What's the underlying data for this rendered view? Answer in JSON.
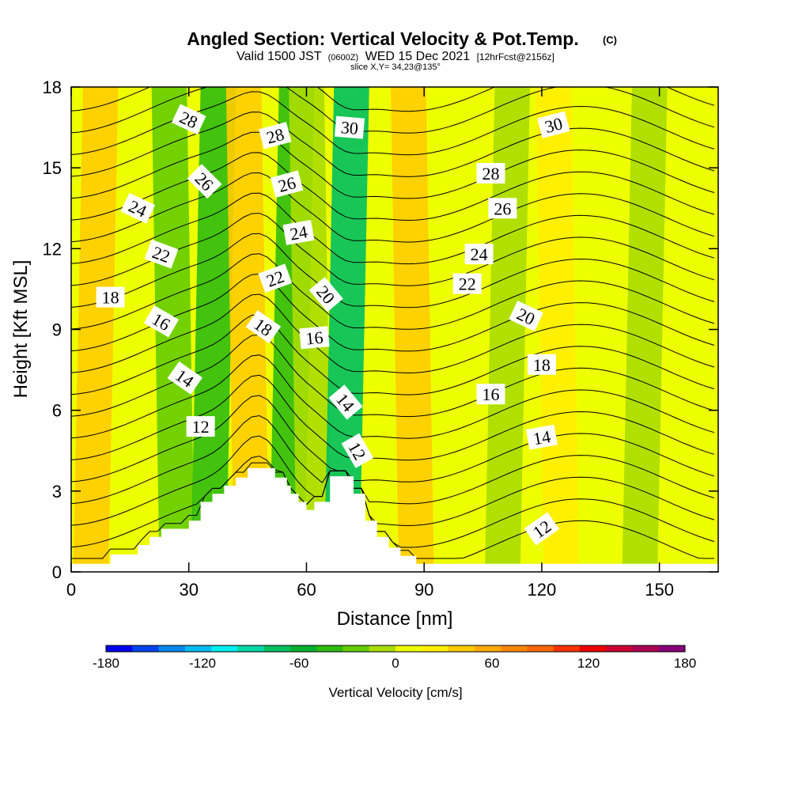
{
  "header": {
    "title": "Angled Section: Vertical Velocity & Pot.Temp.",
    "copyright": "(C)",
    "valid_prefix": "Valid 1500 JST",
    "valid_utc": "(0600Z)",
    "valid_date": "WED 15 Dec 2021",
    "forecast": "[12hrFcst@2156z]",
    "slice": "slice X,Y= 34,23@135°"
  },
  "colorbar": {
    "label": "Vertical Velocity [cm/s]",
    "tick_labels": [
      "-180",
      "-120",
      "-60",
      "0",
      "60",
      "120",
      "180"
    ],
    "colors": [
      "#0000ee",
      "#0044ee",
      "#0088ee",
      "#00bbee",
      "#00eeee",
      "#00d8a8",
      "#00c060",
      "#00b030",
      "#30bb10",
      "#66cc00",
      "#aadd00",
      "#eeff00",
      "#ffee00",
      "#ffcc00",
      "#ffaa00",
      "#ff8800",
      "#ff6600",
      "#ff3300",
      "#ee0000",
      "#cc0033",
      "#aa0055",
      "#880077"
    ]
  },
  "chart_data": {
    "type": "heatmap",
    "xlabel": "Distance [nm]",
    "ylabel": "Height [Kft MSL]",
    "xlim": [
      0,
      165
    ],
    "ylim": [
      0,
      18
    ],
    "xticks": [
      0,
      30,
      60,
      90,
      120,
      150
    ],
    "yticks": [
      0,
      3,
      6,
      9,
      12,
      15,
      18
    ],
    "field": "vertical velocity (cm/s), filled contours",
    "contour_field": "potential temperature (°C), contour interval 1",
    "theta_range": [
      10,
      31
    ],
    "vertical_velocity_bands": [
      {
        "x_center": 5,
        "w": 45,
        "note": "weak upward near surface"
      },
      {
        "x_center": 27,
        "w": -30
      },
      {
        "x_center": 35,
        "w": -60
      },
      {
        "x_center": 46,
        "w": 50
      },
      {
        "x_center": 55,
        "w": -60
      },
      {
        "x_center": 62,
        "w": -15
      },
      {
        "x_center": 69,
        "w": -85
      },
      {
        "x_center": 88,
        "w": 40
      },
      {
        "x_center": 110,
        "w": -20
      },
      {
        "x_center": 125,
        "w": 25
      },
      {
        "x_center": 145,
        "w": -15
      }
    ],
    "terrain": [
      {
        "x": 0,
        "h": 0.3
      },
      {
        "x": 10,
        "h": 0.3
      },
      {
        "x": 10,
        "h": 0.65
      },
      {
        "x": 17,
        "h": 0.65
      },
      {
        "x": 17,
        "h": 1.0
      },
      {
        "x": 20,
        "h": 1.0
      },
      {
        "x": 20,
        "h": 1.3
      },
      {
        "x": 23,
        "h": 1.3
      },
      {
        "x": 23,
        "h": 1.6
      },
      {
        "x": 30,
        "h": 1.6
      },
      {
        "x": 30,
        "h": 1.9
      },
      {
        "x": 33,
        "h": 1.9
      },
      {
        "x": 33,
        "h": 2.6
      },
      {
        "x": 36,
        "h": 2.6
      },
      {
        "x": 36,
        "h": 2.9
      },
      {
        "x": 39,
        "h": 2.9
      },
      {
        "x": 39,
        "h": 3.2
      },
      {
        "x": 42,
        "h": 3.2
      },
      {
        "x": 42,
        "h": 3.5
      },
      {
        "x": 45,
        "h": 3.5
      },
      {
        "x": 45,
        "h": 3.85
      },
      {
        "x": 52,
        "h": 3.85
      },
      {
        "x": 52,
        "h": 3.5
      },
      {
        "x": 55,
        "h": 3.5
      },
      {
        "x": 55,
        "h": 3.2
      },
      {
        "x": 56,
        "h": 3.2
      },
      {
        "x": 56,
        "h": 2.9
      },
      {
        "x": 58,
        "h": 2.9
      },
      {
        "x": 58,
        "h": 2.6
      },
      {
        "x": 60,
        "h": 2.6
      },
      {
        "x": 60,
        "h": 2.3
      },
      {
        "x": 62,
        "h": 2.3
      },
      {
        "x": 62,
        "h": 2.6
      },
      {
        "x": 66,
        "h": 2.6
      },
      {
        "x": 66,
        "h": 3.55
      },
      {
        "x": 72,
        "h": 3.55
      },
      {
        "x": 72,
        "h": 2.9
      },
      {
        "x": 75,
        "h": 2.9
      },
      {
        "x": 75,
        "h": 1.9
      },
      {
        "x": 78,
        "h": 1.9
      },
      {
        "x": 78,
        "h": 1.3
      },
      {
        "x": 81,
        "h": 1.3
      },
      {
        "x": 81,
        "h": 0.9
      },
      {
        "x": 84,
        "h": 0.9
      },
      {
        "x": 84,
        "h": 0.6
      },
      {
        "x": 88,
        "h": 0.6
      },
      {
        "x": 88,
        "h": 0.3
      },
      {
        "x": 165,
        "h": 0.3
      }
    ],
    "contour_labels": [
      {
        "text": "28",
        "x": 30,
        "y": 16.8,
        "rot": 25
      },
      {
        "text": "28",
        "x": 52,
        "y": 16.2,
        "rot": -15
      },
      {
        "text": "30",
        "x": 71,
        "y": 16.5,
        "rot": 5
      },
      {
        "text": "30",
        "x": 123,
        "y": 16.6,
        "rot": -15
      },
      {
        "text": "26",
        "x": 34,
        "y": 14.5,
        "rot": 45
      },
      {
        "text": "26",
        "x": 55,
        "y": 14.4,
        "rot": -15
      },
      {
        "text": "28",
        "x": 107,
        "y": 14.8,
        "rot": 0
      },
      {
        "text": "26",
        "x": 110,
        "y": 13.5,
        "rot": 0
      },
      {
        "text": "24",
        "x": 17,
        "y": 13.5,
        "rot": 25
      },
      {
        "text": "24",
        "x": 58,
        "y": 12.6,
        "rot": -10
      },
      {
        "text": "24",
        "x": 104,
        "y": 11.8,
        "rot": 0
      },
      {
        "text": "22",
        "x": 23,
        "y": 11.8,
        "rot": 20
      },
      {
        "text": "22",
        "x": 52,
        "y": 10.9,
        "rot": -20
      },
      {
        "text": "22",
        "x": 101,
        "y": 10.7,
        "rot": 0
      },
      {
        "text": "20",
        "x": 65,
        "y": 10.3,
        "rot": 50
      },
      {
        "text": "18",
        "x": 10,
        "y": 10.2,
        "rot": 0
      },
      {
        "text": "20",
        "x": 116,
        "y": 9.5,
        "rot": 25
      },
      {
        "text": "16",
        "x": 23,
        "y": 9.3,
        "rot": 30
      },
      {
        "text": "18",
        "x": 49,
        "y": 9.1,
        "rot": 35
      },
      {
        "text": "16",
        "x": 62,
        "y": 8.7,
        "rot": -5
      },
      {
        "text": "18",
        "x": 120,
        "y": 7.7,
        "rot": 0
      },
      {
        "text": "14",
        "x": 29,
        "y": 7.2,
        "rot": 35
      },
      {
        "text": "16",
        "x": 107,
        "y": 6.6,
        "rot": 0
      },
      {
        "text": "14",
        "x": 70,
        "y": 6.3,
        "rot": 50
      },
      {
        "text": "12",
        "x": 33,
        "y": 5.4,
        "rot": 0
      },
      {
        "text": "14",
        "x": 120,
        "y": 5.0,
        "rot": -10
      },
      {
        "text": "12",
        "x": 73,
        "y": 4.5,
        "rot": 60
      },
      {
        "text": "12",
        "x": 120,
        "y": 1.6,
        "rot": -35
      }
    ]
  }
}
